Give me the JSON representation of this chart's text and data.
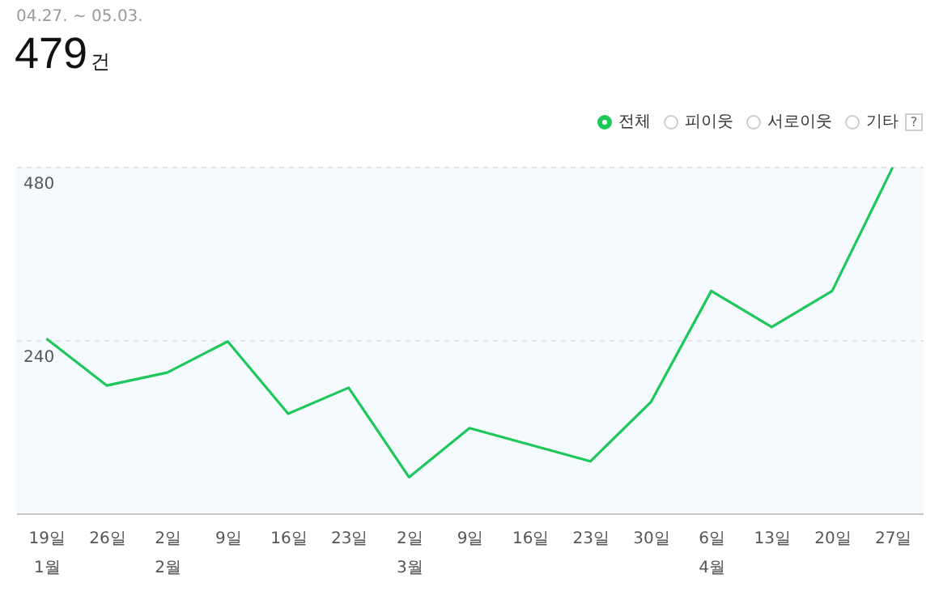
{
  "chart_data": {
    "type": "line",
    "title": "479건",
    "subtitle": "04.27. ~ 05.03.",
    "categories": [
      "19일\n1월",
      "26일",
      "2일\n2월",
      "9일",
      "16일",
      "23일",
      "2일\n3월",
      "9일",
      "16일",
      "23일",
      "30일",
      "6일\n4월",
      "13일",
      "20일",
      "27일"
    ],
    "series": [
      {
        "name": "전체",
        "color": "#1ec75a",
        "values": [
          242,
          177,
          195,
          238,
          138,
          174,
          50,
          118,
          95,
          72,
          154,
          308,
          258,
          308,
          479
        ]
      }
    ],
    "annotations": [
      "피이웃",
      "서로이웃",
      "기타",
      "?"
    ],
    "ylim": [
      0,
      480
    ],
    "yticks": [
      240,
      480
    ],
    "grid": "y",
    "legend": "top right",
    "marker": "none",
    "line_style": "solid"
  }
}
